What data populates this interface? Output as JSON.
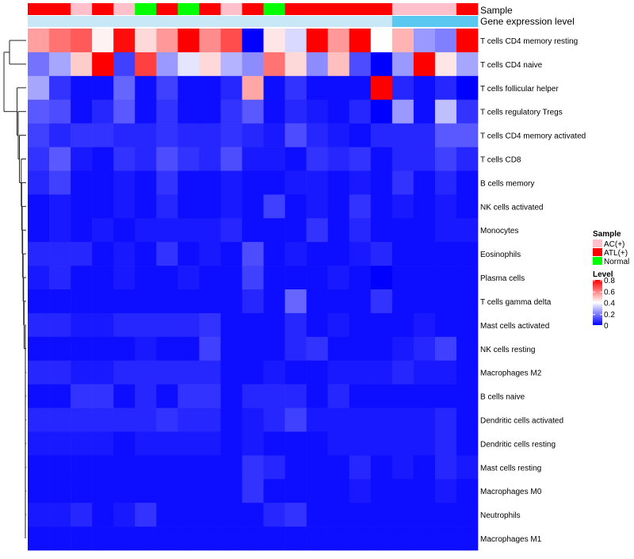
{
  "chart_data": {
    "type": "heatmap",
    "title": "",
    "annotation_rows": [
      {
        "name": "Sample",
        "label": "Sample"
      },
      {
        "name": "gene-expression-level",
        "label": "Gene expression level"
      }
    ],
    "row_labels": [
      "T cells CD4 memory resting",
      "T cells CD4 naive",
      "T cells follicular helper",
      "T cells regulatory  Tregs",
      "T cells CD4 memory activated",
      "T cells CD8",
      "B cells memory",
      "NK cells activated",
      "Monocytes",
      "Eosinophils",
      "Plasma cells",
      "T cells gamma delta",
      "Mast cells activated",
      "NK cells resting",
      "Macrophages M2",
      "B cells naive",
      "Dendritic cells activated",
      "Dendritic cells resting",
      "Mast cells resting",
      "Macrophages M0",
      "Neutrophils",
      "Macrophages M1"
    ],
    "sample_groups": [
      "ATL(+)",
      "ATL(+)",
      "AC(+)",
      "ATL(+)",
      "AC(+)",
      "Normal",
      "ATL(+)",
      "Normal",
      "ATL(+)",
      "AC(+)",
      "ATL(+)",
      "Normal",
      "ATL(+)",
      "ATL(+)",
      "ATL(+)",
      "ATL(+)",
      "ATL(+)",
      "AC(+)",
      "AC(+)",
      "AC(+)",
      "ATL(+)"
    ],
    "gene_expression_level": [
      0.3,
      0.3,
      0.3,
      0.3,
      0.3,
      0.3,
      0.3,
      0.3,
      0.3,
      0.3,
      0.3,
      0.3,
      0.3,
      0.3,
      0.3,
      0.3,
      0.3,
      0.45,
      0.45,
      0.45,
      0.45
    ],
    "values": [
      [
        0.55,
        0.62,
        0.66,
        0.42,
        0.78,
        0.46,
        0.56,
        0.8,
        0.58,
        0.68,
        0.0,
        0.44,
        0.34,
        0.8,
        0.56,
        0.8,
        0.4,
        0.52,
        0.24,
        0.2,
        0.8
      ],
      [
        0.18,
        0.26,
        0.48,
        0.8,
        0.1,
        0.7,
        0.24,
        0.36,
        0.46,
        0.28,
        0.22,
        0.62,
        0.46,
        0.22,
        0.5,
        0.12,
        0.0,
        0.24,
        0.8,
        0.44,
        0.26
      ],
      [
        0.26,
        0.08,
        0.02,
        0.02,
        0.16,
        0.02,
        0.1,
        0.02,
        0.02,
        0.06,
        0.54,
        0.02,
        0.08,
        0.02,
        0.02,
        0.02,
        0.8,
        0.06,
        0.02,
        0.06,
        0.0
      ],
      [
        0.14,
        0.12,
        0.02,
        0.06,
        0.14,
        0.02,
        0.08,
        0.02,
        0.02,
        0.08,
        0.14,
        0.02,
        0.06,
        0.04,
        0.02,
        0.06,
        0.0,
        0.24,
        0.02,
        0.3,
        0.08
      ],
      [
        0.1,
        0.06,
        0.08,
        0.08,
        0.06,
        0.06,
        0.08,
        0.06,
        0.06,
        0.08,
        0.06,
        0.04,
        0.12,
        0.06,
        0.04,
        0.02,
        0.06,
        0.06,
        0.06,
        0.14,
        0.14
      ],
      [
        0.08,
        0.14,
        0.04,
        0.02,
        0.08,
        0.06,
        0.12,
        0.08,
        0.06,
        0.12,
        0.04,
        0.04,
        0.02,
        0.08,
        0.06,
        0.08,
        0.02,
        0.06,
        0.06,
        0.1,
        0.06
      ],
      [
        0.06,
        0.1,
        0.02,
        0.02,
        0.04,
        0.02,
        0.08,
        0.02,
        0.02,
        0.04,
        0.02,
        0.02,
        0.04,
        0.04,
        0.02,
        0.04,
        0.02,
        0.08,
        0.02,
        0.06,
        0.02
      ],
      [
        0.02,
        0.04,
        0.02,
        0.02,
        0.04,
        0.02,
        0.06,
        0.02,
        0.02,
        0.04,
        0.02,
        0.1,
        0.02,
        0.04,
        0.02,
        0.08,
        0.02,
        0.04,
        0.02,
        0.04,
        0.02
      ],
      [
        0.02,
        0.04,
        0.02,
        0.04,
        0.02,
        0.04,
        0.04,
        0.04,
        0.04,
        0.06,
        0.02,
        0.02,
        0.02,
        0.08,
        0.02,
        0.06,
        0.02,
        0.02,
        0.02,
        0.04,
        0.04
      ],
      [
        0.06,
        0.06,
        0.06,
        0.02,
        0.04,
        0.02,
        0.08,
        0.02,
        0.04,
        0.02,
        0.12,
        0.02,
        0.04,
        0.02,
        0.02,
        0.04,
        0.06,
        0.02,
        0.02,
        0.02,
        0.02
      ],
      [
        0.04,
        0.06,
        0.02,
        0.02,
        0.04,
        0.02,
        0.02,
        0.04,
        0.02,
        0.02,
        0.1,
        0.02,
        0.02,
        0.02,
        0.04,
        0.02,
        0.0,
        0.02,
        0.02,
        0.02,
        0.02
      ],
      [
        0.02,
        0.02,
        0.02,
        0.02,
        0.02,
        0.02,
        0.02,
        0.02,
        0.02,
        0.02,
        0.06,
        0.02,
        0.16,
        0.02,
        0.02,
        0.02,
        0.08,
        0.02,
        0.02,
        0.02,
        0.02
      ],
      [
        0.06,
        0.06,
        0.04,
        0.04,
        0.06,
        0.06,
        0.06,
        0.06,
        0.08,
        0.02,
        0.02,
        0.02,
        0.06,
        0.02,
        0.04,
        0.02,
        0.02,
        0.02,
        0.04,
        0.02,
        0.02
      ],
      [
        0.02,
        0.02,
        0.02,
        0.02,
        0.02,
        0.04,
        0.02,
        0.02,
        0.1,
        0.02,
        0.02,
        0.02,
        0.06,
        0.08,
        0.02,
        0.02,
        0.02,
        0.04,
        0.06,
        0.1,
        0.02
      ],
      [
        0.06,
        0.06,
        0.04,
        0.04,
        0.06,
        0.06,
        0.06,
        0.06,
        0.06,
        0.02,
        0.02,
        0.04,
        0.02,
        0.02,
        0.04,
        0.04,
        0.04,
        0.06,
        0.04,
        0.04,
        0.02
      ],
      [
        0.02,
        0.02,
        0.08,
        0.08,
        0.02,
        0.06,
        0.02,
        0.08,
        0.08,
        0.02,
        0.06,
        0.06,
        0.06,
        0.02,
        0.06,
        0.02,
        0.02,
        0.02,
        0.02,
        0.02,
        0.02
      ],
      [
        0.06,
        0.06,
        0.06,
        0.06,
        0.06,
        0.06,
        0.08,
        0.06,
        0.06,
        0.02,
        0.04,
        0.06,
        0.1,
        0.04,
        0.04,
        0.04,
        0.04,
        0.04,
        0.04,
        0.06,
        0.02
      ],
      [
        0.04,
        0.04,
        0.04,
        0.04,
        0.02,
        0.04,
        0.04,
        0.04,
        0.04,
        0.02,
        0.04,
        0.02,
        0.02,
        0.02,
        0.04,
        0.04,
        0.04,
        0.04,
        0.04,
        0.06,
        0.02
      ],
      [
        0.02,
        0.02,
        0.02,
        0.02,
        0.02,
        0.02,
        0.02,
        0.02,
        0.02,
        0.02,
        0.08,
        0.06,
        0.02,
        0.02,
        0.02,
        0.06,
        0.02,
        0.04,
        0.02,
        0.06,
        0.04
      ],
      [
        0.02,
        0.02,
        0.02,
        0.02,
        0.02,
        0.02,
        0.02,
        0.02,
        0.02,
        0.02,
        0.08,
        0.02,
        0.02,
        0.02,
        0.02,
        0.04,
        0.02,
        0.02,
        0.02,
        0.04,
        0.02
      ],
      [
        0.04,
        0.04,
        0.06,
        0.02,
        0.04,
        0.08,
        0.02,
        0.02,
        0.02,
        0.02,
        0.02,
        0.06,
        0.08,
        0.02,
        0.02,
        0.02,
        0.02,
        0.02,
        0.02,
        0.02,
        0.02
      ],
      [
        0.02,
        0.02,
        0.02,
        0.02,
        0.02,
        0.02,
        0.02,
        0.02,
        0.02,
        0.02,
        0.02,
        0.02,
        0.02,
        0.02,
        0.02,
        0.02,
        0.02,
        0.02,
        0.02,
        0.02,
        0.02
      ]
    ],
    "legend": {
      "sample": {
        "title": "Sample",
        "entries": [
          {
            "label": "AC(+)",
            "color": "#ffc0cb"
          },
          {
            "label": "ATL(+)",
            "color": "#ff0000"
          },
          {
            "label": "Normal",
            "color": "#00ff00"
          }
        ]
      },
      "level": {
        "title": "Level",
        "ticks": [
          "0.8",
          "0.6",
          "0.4",
          "0.2",
          "0"
        ],
        "tick_values": [
          0.8,
          0.6,
          0.4,
          0.2,
          0
        ],
        "range": [
          0,
          0.8
        ]
      }
    },
    "colors": {
      "low": "#0000ff",
      "mid": "#ffffff",
      "high": "#ff0000",
      "annotation_light": "#c8e8f8",
      "annotation_dark": "#5ac8f0"
    }
  }
}
